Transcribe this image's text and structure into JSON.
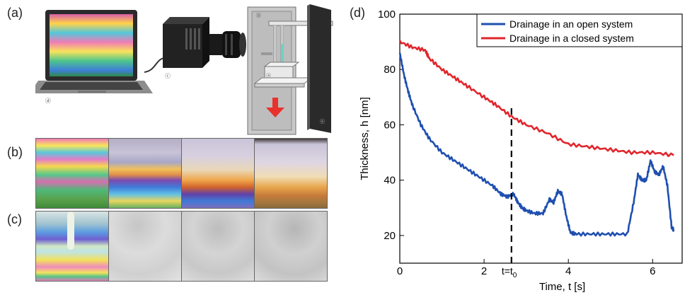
{
  "panels": {
    "a": {
      "label": "(a)"
    },
    "b": {
      "label": "(b)"
    },
    "c": {
      "label": "(c)"
    },
    "d": {
      "label": "(d)"
    }
  },
  "apparatus": {
    "laptop_tag": "ⓓ",
    "camera_tag": "ⓒ",
    "frame_tag_b": "ⓑ",
    "frame_tag_a": "ⓐ",
    "frame_tag_e": "ⓔ",
    "arrow_color": "#e8322b"
  },
  "chart_data": {
    "type": "line",
    "xlabel": "Time, t [s]",
    "ylabel": "Thickness, h [nm]",
    "xlim": [
      0,
      6.7
    ],
    "ylim": [
      10,
      100
    ],
    "x_ticks": [
      0,
      2,
      4,
      6
    ],
    "y_ticks": [
      20,
      40,
      60,
      80,
      100
    ],
    "marker_x": 2.65,
    "marker_label": "t=t",
    "marker_subscript": "0",
    "legend_position": "top-right",
    "series": [
      {
        "name": "Drainage in an open system",
        "color": "#1f4fb0",
        "x": [
          0,
          0.1,
          0.2,
          0.3,
          0.5,
          0.7,
          1.0,
          1.3,
          1.6,
          1.9,
          2.2,
          2.4,
          2.55,
          2.7,
          2.8,
          2.9,
          3.0,
          3.2,
          3.4,
          3.55,
          3.65,
          3.75,
          3.85,
          3.95,
          4.05,
          4.2,
          4.6,
          5.0,
          5.4,
          5.55,
          5.65,
          5.75,
          5.85,
          5.95,
          6.05,
          6.15,
          6.25,
          6.35,
          6.45,
          6.5
        ],
        "y": [
          86,
          78,
          72,
          67,
          60,
          55,
          50,
          47,
          44,
          41,
          38,
          35,
          34,
          35,
          32,
          30,
          29,
          28,
          28,
          33,
          32,
          36,
          35,
          27,
          21,
          20.5,
          20.5,
          20.5,
          20.5,
          32,
          42,
          40,
          40,
          47,
          43,
          42,
          45,
          38,
          23,
          22
        ]
      },
      {
        "name": "Drainage in a closed system",
        "color": "#e0262c",
        "x": [
          0,
          0.3,
          0.6,
          0.7,
          1.0,
          1.3,
          1.6,
          2.0,
          2.3,
          2.65,
          3.0,
          3.5,
          4.0,
          4.5,
          5.0,
          5.5,
          6.0,
          6.5
        ],
        "y": [
          90,
          88,
          87,
          84,
          80,
          77,
          74,
          70,
          67,
          63,
          60,
          57,
          53,
          52,
          51,
          50,
          50,
          49
        ]
      }
    ]
  }
}
